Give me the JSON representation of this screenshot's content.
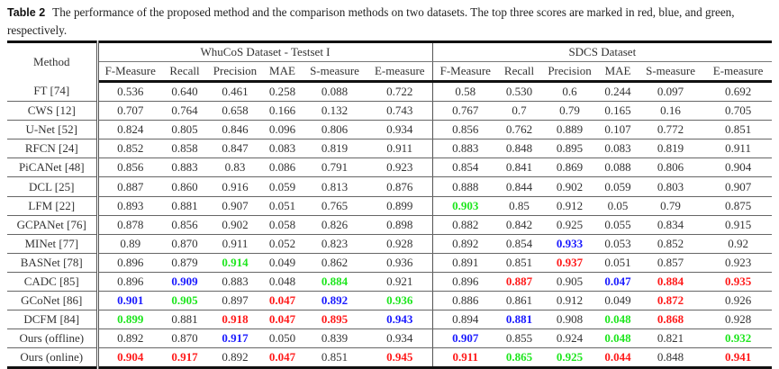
{
  "caption": {
    "label": "Table 2",
    "text": "The performance of the proposed method and the comparison methods on two datasets. The top three scores are marked in red, blue, and green, respectively."
  },
  "header": {
    "method": "Method",
    "group1": "WhuCoS Dataset - Testset I",
    "group2": "SDCS Dataset",
    "metrics": [
      "F-Measure",
      "Recall",
      "Precision",
      "MAE",
      "S-measure",
      "E-measure",
      "F-Measure",
      "Recall",
      "Precision",
      "MAE",
      "S-measure",
      "E-measure"
    ]
  },
  "colors": {
    "r": "#ff1a1a",
    "b": "#1a1aff",
    "g": "#1ee61e"
  },
  "rows": [
    {
      "method": "FT [74]",
      "values": [
        "0.536",
        "0.640",
        "0.461",
        "0.258",
        "0.088",
        "0.722",
        "0.58",
        "0.530",
        "0.6",
        "0.244",
        "0.097",
        "0.692"
      ],
      "marks": [
        "",
        "",
        "",
        "",
        "",
        "",
        "",
        "",
        "",
        "",
        "",
        ""
      ]
    },
    {
      "method": "CWS [12]",
      "values": [
        "0.707",
        "0.764",
        "0.658",
        "0.166",
        "0.132",
        "0.743",
        "0.767",
        "0.7",
        "0.79",
        "0.165",
        "0.16",
        "0.705"
      ],
      "marks": [
        "",
        "",
        "",
        "",
        "",
        "",
        "",
        "",
        "",
        "",
        "",
        ""
      ]
    },
    {
      "method": "U-Net [52]",
      "values": [
        "0.824",
        "0.805",
        "0.846",
        "0.096",
        "0.806",
        "0.934",
        "0.856",
        "0.762",
        "0.889",
        "0.107",
        "0.772",
        "0.851"
      ],
      "marks": [
        "",
        "",
        "",
        "",
        "",
        "",
        "",
        "",
        "",
        "",
        "",
        ""
      ]
    },
    {
      "method": "RFCN [24]",
      "values": [
        "0.852",
        "0.858",
        "0.847",
        "0.083",
        "0.819",
        "0.911",
        "0.883",
        "0.848",
        "0.895",
        "0.083",
        "0.819",
        "0.911"
      ],
      "marks": [
        "",
        "",
        "",
        "",
        "",
        "",
        "",
        "",
        "",
        "",
        "",
        ""
      ]
    },
    {
      "method": "PiCANet [48]",
      "values": [
        "0.856",
        "0.883",
        "0.83",
        "0.086",
        "0.791",
        "0.923",
        "0.854",
        "0.841",
        "0.869",
        "0.088",
        "0.806",
        "0.904"
      ],
      "marks": [
        "",
        "",
        "",
        "",
        "",
        "",
        "",
        "",
        "",
        "",
        "",
        ""
      ]
    },
    {
      "method": "DCL [25]",
      "values": [
        "0.887",
        "0.860",
        "0.916",
        "0.059",
        "0.813",
        "0.876",
        "0.888",
        "0.844",
        "0.902",
        "0.059",
        "0.803",
        "0.907"
      ],
      "marks": [
        "",
        "",
        "",
        "",
        "",
        "",
        "",
        "",
        "",
        "",
        "",
        ""
      ]
    },
    {
      "method": "LFM [22]",
      "values": [
        "0.893",
        "0.881",
        "0.907",
        "0.051",
        "0.765",
        "0.899",
        "0.903",
        "0.85",
        "0.912",
        "0.05",
        "0.79",
        "0.875"
      ],
      "marks": [
        "",
        "",
        "",
        "",
        "",
        "",
        "g",
        "",
        "",
        "",
        "",
        ""
      ]
    },
    {
      "method": "GCPANet [76]",
      "values": [
        "0.878",
        "0.856",
        "0.902",
        "0.058",
        "0.826",
        "0.898",
        "0.882",
        "0.842",
        "0.925",
        "0.055",
        "0.834",
        "0.915"
      ],
      "marks": [
        "",
        "",
        "",
        "",
        "",
        "",
        "",
        "",
        "",
        "",
        "",
        ""
      ]
    },
    {
      "method": "MINet [77]",
      "values": [
        "0.89",
        "0.870",
        "0.911",
        "0.052",
        "0.823",
        "0.928",
        "0.892",
        "0.854",
        "0.933",
        "0.053",
        "0.852",
        "0.92"
      ],
      "marks": [
        "",
        "",
        "",
        "",
        "",
        "",
        "",
        "",
        "b",
        "",
        "",
        ""
      ]
    },
    {
      "method": "BASNet [78]",
      "values": [
        "0.896",
        "0.879",
        "0.914",
        "0.049",
        "0.862",
        "0.936",
        "0.891",
        "0.851",
        "0.937",
        "0.051",
        "0.857",
        "0.923"
      ],
      "marks": [
        "",
        "",
        "g",
        "",
        "",
        "",
        "",
        "",
        "r",
        "",
        "",
        ""
      ]
    },
    {
      "method": "CADC [85]",
      "values": [
        "0.896",
        "0.909",
        "0.883",
        "0.048",
        "0.884",
        "0.921",
        "0.896",
        "0.887",
        "0.905",
        "0.047",
        "0.884",
        "0.935"
      ],
      "marks": [
        "",
        "b",
        "",
        "",
        "g",
        "",
        "",
        "r",
        "",
        "b",
        "r",
        "r"
      ]
    },
    {
      "method": "GCoNet [86]",
      "values": [
        "0.901",
        "0.905",
        "0.897",
        "0.047",
        "0.892",
        "0.936",
        "0.886",
        "0.861",
        "0.912",
        "0.049",
        "0.872",
        "0.926"
      ],
      "marks": [
        "b",
        "g",
        "",
        "r",
        "b",
        "g",
        "",
        "",
        "",
        "",
        "r",
        ""
      ]
    },
    {
      "method": "DCFM [84]",
      "values": [
        "0.899",
        "0.881",
        "0.918",
        "0.047",
        "0.895",
        "0.943",
        "0.894",
        "0.881",
        "0.908",
        "0.048",
        "0.868",
        "0.928"
      ],
      "marks": [
        "g",
        "",
        "r",
        "r",
        "r",
        "b",
        "",
        "b",
        "",
        "g",
        "r",
        ""
      ]
    },
    {
      "method": "Ours (offline)",
      "values": [
        "0.892",
        "0.870",
        "0.917",
        "0.050",
        "0.839",
        "0.934",
        "0.907",
        "0.855",
        "0.924",
        "0.048",
        "0.821",
        "0.932"
      ],
      "marks": [
        "",
        "",
        "b",
        "",
        "",
        "",
        "b",
        "",
        "",
        "g",
        "",
        "g"
      ]
    },
    {
      "method": "Ours (online)",
      "values": [
        "0.904",
        "0.917",
        "0.892",
        "0.047",
        "0.851",
        "0.945",
        "0.911",
        "0.865",
        "0.925",
        "0.044",
        "0.848",
        "0.941"
      ],
      "marks": [
        "r",
        "r",
        "",
        "r",
        "",
        "r",
        "r",
        "g",
        "g",
        "r",
        "",
        "r"
      ]
    }
  ]
}
